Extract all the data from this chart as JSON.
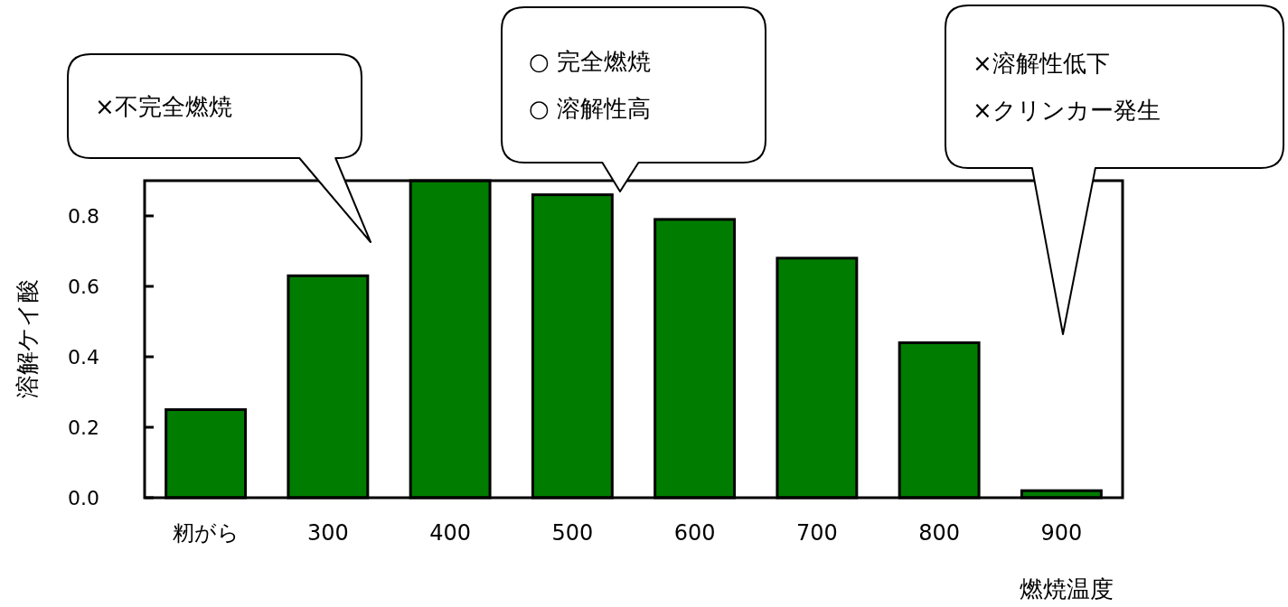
{
  "chart_data": {
    "type": "bar",
    "xlabel": "燃焼温度",
    "ylabel": "溶解ケイ酸",
    "categories": [
      "籾がら",
      "300",
      "400",
      "500",
      "600",
      "700",
      "800",
      "900"
    ],
    "values": [
      0.25,
      0.63,
      0.9,
      0.86,
      0.79,
      0.68,
      0.44,
      0.02
    ],
    "color": "#007c00",
    "ylim": [
      0,
      0.9
    ],
    "yticks": [
      {
        "value": 0,
        "label": "0.0"
      },
      {
        "value": 0.2,
        "label": "0.2"
      },
      {
        "value": 0.4,
        "label": "0.4"
      },
      {
        "value": 0.6,
        "label": "0.6"
      },
      {
        "value": 0.8,
        "label": "0.8"
      }
    ],
    "grid": false,
    "annotations": [
      "×不完全燃焼",
      "○ 完全燃焼\n○ 溶解性高",
      "×溶解性低下\n×クリンカー発生"
    ]
  }
}
